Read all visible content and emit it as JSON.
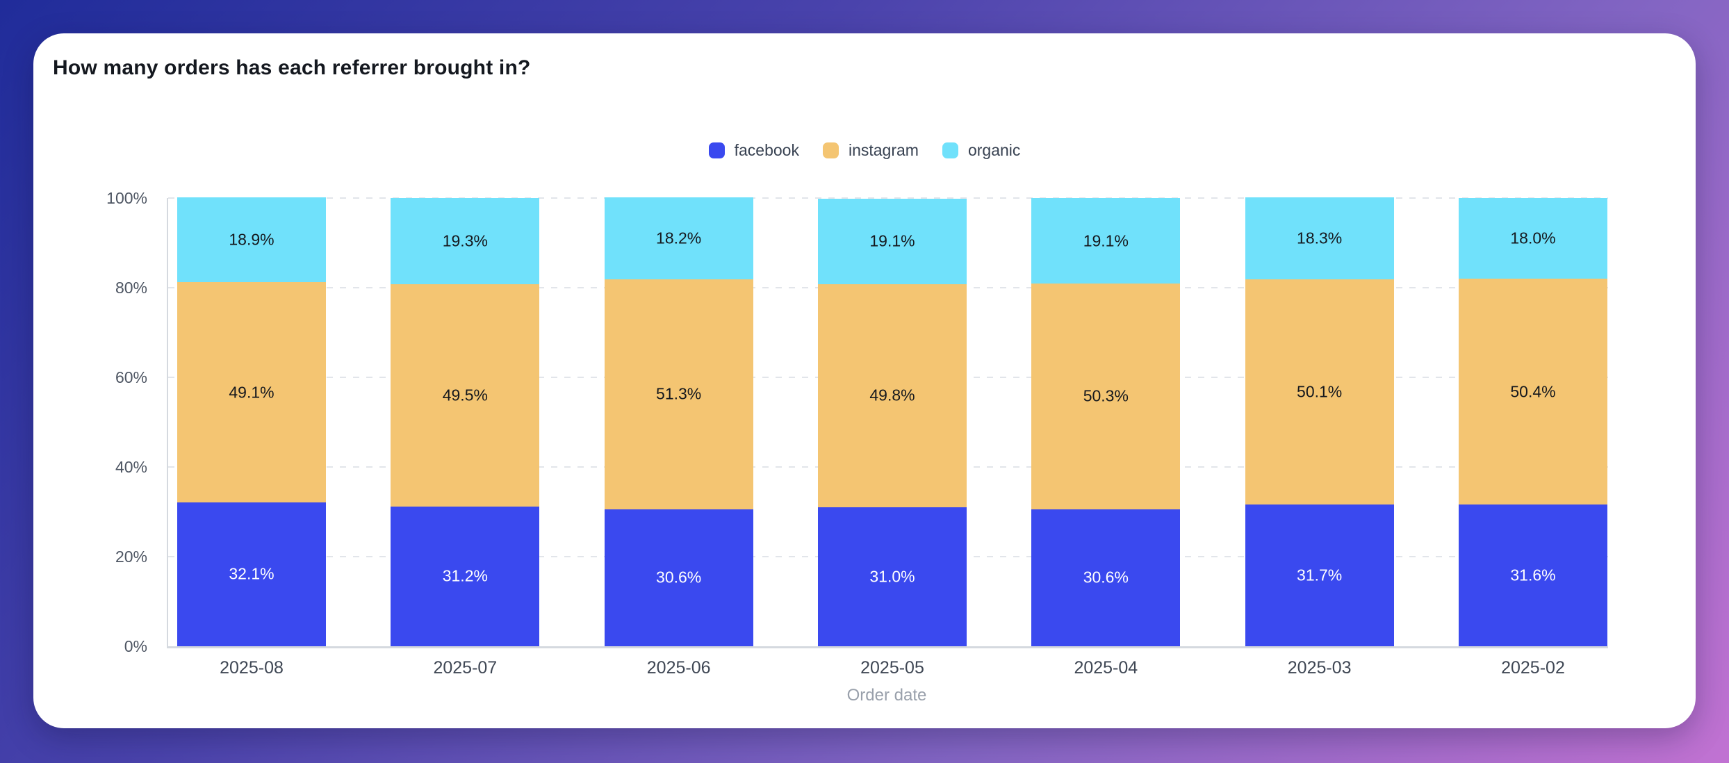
{
  "card": {
    "title": "How many orders has each referrer brought in?"
  },
  "axis": {
    "x_title": "Order date"
  },
  "chart_data": {
    "type": "bar",
    "stacked": true,
    "percent_stacked": true,
    "title": "How many orders has each referrer brought in?",
    "xlabel": "Order date",
    "ylabel": "",
    "ylim": [
      0,
      100
    ],
    "grid": "dashed-horizontal",
    "legend_position": "top-center",
    "value_label_format": "one-decimal-percent",
    "categories": [
      "2025-08",
      "2025-07",
      "2025-06",
      "2025-05",
      "2025-04",
      "2025-03",
      "2025-02"
    ],
    "series": [
      {
        "name": "facebook",
        "color": "#3a49ef",
        "label_color": "#ffffff",
        "values": [
          32.1,
          31.2,
          30.6,
          31.0,
          30.6,
          31.7,
          31.6
        ]
      },
      {
        "name": "instagram",
        "color": "#f4c572",
        "label_color": "#15181d",
        "values": [
          49.1,
          49.5,
          51.3,
          49.8,
          50.3,
          50.1,
          50.4
        ]
      },
      {
        "name": "organic",
        "color": "#70e1fb",
        "label_color": "#15181d",
        "values": [
          18.9,
          19.3,
          18.2,
          19.1,
          19.1,
          18.3,
          18.0
        ]
      }
    ],
    "yticks": [
      {
        "label": "0%",
        "value": 0
      },
      {
        "label": "20%",
        "value": 20
      },
      {
        "label": "40%",
        "value": 40
      },
      {
        "label": "60%",
        "value": 60
      },
      {
        "label": "80%",
        "value": 80
      },
      {
        "label": "100%",
        "value": 100
      }
    ]
  },
  "colors": {
    "background_gradient": [
      "#202c9a",
      "#4a43ac",
      "#8365c3",
      "#c172d2"
    ],
    "card_background": "#ffffff",
    "title_text": "#14181f",
    "legend_text": "#374151",
    "axis_line": "#d5d9df",
    "gridline": "#e2e5ea",
    "tick_text": "#4d5562",
    "x_tick_text": "#3f4754",
    "axis_title_text": "#99a0ab"
  }
}
